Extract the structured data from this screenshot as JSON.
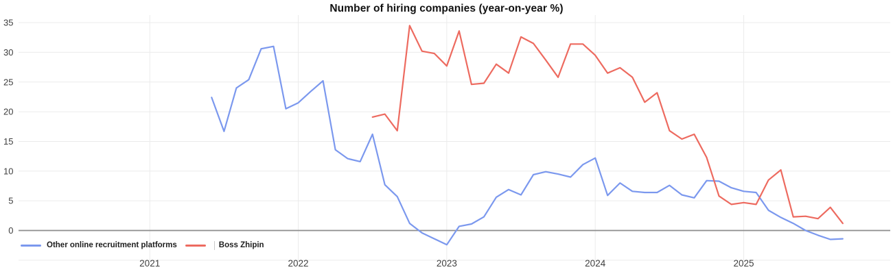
{
  "title": "Number of hiring companies (year-on-year %)",
  "legend": [
    {
      "label": "Other online recruitment platforms",
      "color": "#7b98ee"
    },
    {
      "label": "Boss Zhipin",
      "color": "#ed6a5f"
    }
  ],
  "chart_data": {
    "type": "line",
    "title": "Number of hiring companies (year-on-year %)",
    "x_unit": "month",
    "x_ticks": [
      "2021",
      "2022",
      "2023",
      "2024",
      "2025"
    ],
    "y_ticks": [
      0,
      5,
      10,
      15,
      20,
      25,
      30,
      35
    ],
    "ylim": [
      -5,
      36.5
    ],
    "xlim": [
      "2021-01",
      "2025-12"
    ],
    "grid": true,
    "legend_position": "bottom-left",
    "zero_axis": true,
    "series": [
      {
        "name": "Other online recruitment platforms",
        "color": "#7b98ee",
        "start": "2021-06",
        "values": [
          22.4,
          16.7,
          24.0,
          25.4,
          30.6,
          31.0,
          20.5,
          21.5,
          23.4,
          25.2,
          13.6,
          12.1,
          11.6,
          16.2,
          7.7,
          5.7,
          1.2,
          -0.4,
          -1.4,
          -2.4,
          0.7,
          1.1,
          2.3,
          5.6,
          6.9,
          6.0,
          9.4,
          9.9,
          9.5,
          9.0,
          11.1,
          12.2,
          5.9,
          8.0,
          6.6,
          6.4,
          6.4,
          7.6,
          6.0,
          5.5,
          8.4,
          8.3,
          7.2,
          6.6,
          6.4,
          3.4,
          2.2,
          1.2,
          0.0,
          -0.8,
          -1.5,
          -1.4
        ]
      },
      {
        "name": "Boss Zhipin",
        "color": "#ed6a5f",
        "start": "2022-07",
        "values": [
          19.1,
          19.6,
          16.8,
          34.5,
          30.2,
          29.8,
          27.7,
          33.6,
          24.6,
          24.8,
          28.0,
          26.5,
          32.6,
          31.5,
          28.7,
          25.8,
          31.4,
          31.4,
          29.5,
          26.5,
          27.4,
          25.8,
          21.6,
          23.2,
          16.8,
          15.4,
          16.2,
          12.3,
          5.8,
          4.4,
          4.7,
          4.4,
          8.5,
          10.2,
          2.3,
          2.4,
          2.0,
          3.9,
          1.2
        ]
      }
    ]
  }
}
